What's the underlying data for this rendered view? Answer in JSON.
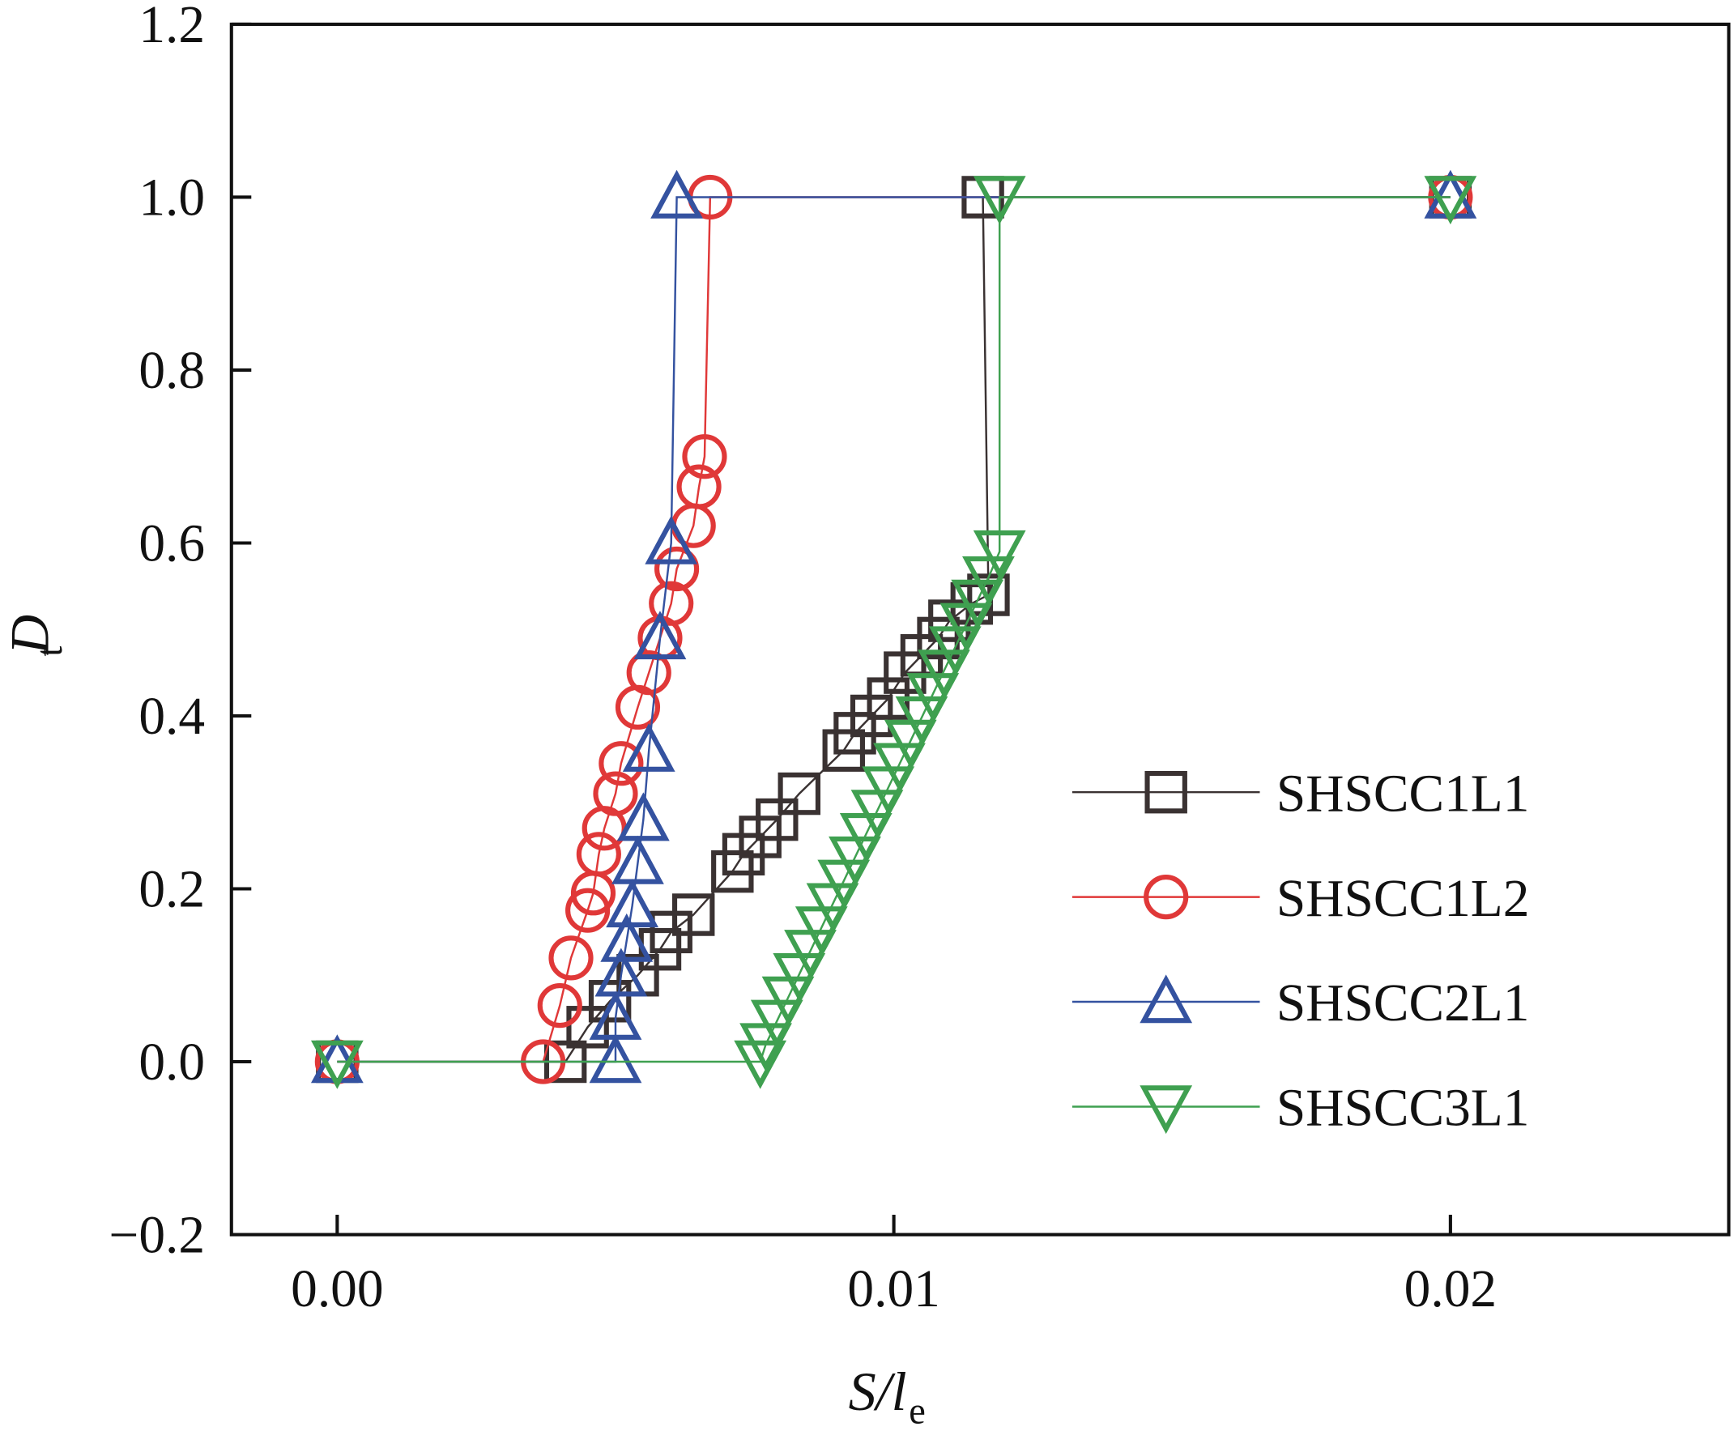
{
  "chart_data": {
    "type": "line",
    "xlabel": "S/l",
    "xlabel_sub": "e",
    "ylabel": "D",
    "ylabel_sub": "t",
    "xlim": [
      -0.0019,
      0.025
    ],
    "ylim": [
      -0.2,
      1.2
    ],
    "xticks": [
      {
        "value": 0,
        "label": "0.00"
      },
      0.01,
      0.02
    ],
    "yticks": [
      {
        "value": -0.2,
        "label": "−0.2"
      },
      {
        "value": 0,
        "label": "0.0"
      },
      0.2,
      0.4,
      0.6,
      0.8,
      {
        "value": 1,
        "label": "1.0"
      },
      1.2
    ],
    "legend_position": "lower right",
    "series": [
      {
        "name": "SHSCC1L1",
        "color": "#3a3232",
        "marker": "square",
        "x": [
          0,
          0.0041,
          0.0045,
          0.0049,
          0.0054,
          0.0058,
          0.006,
          0.0064,
          0.0071,
          0.0073,
          0.0076,
          0.0079,
          0.0083,
          0.0091,
          0.0093,
          0.0096,
          0.0099,
          0.0102,
          0.0105,
          0.0108,
          0.011,
          0.0114,
          0.0117,
          0.0116,
          0.02
        ],
        "values": [
          0,
          0,
          0.04,
          0.07,
          0.1,
          0.13,
          0.15,
          0.17,
          0.22,
          0.24,
          0.26,
          0.28,
          0.31,
          0.36,
          0.38,
          0.4,
          0.42,
          0.45,
          0.47,
          0.49,
          0.51,
          0.53,
          0.54,
          1,
          1
        ]
      },
      {
        "name": "SHSCC1L2",
        "color": "#e03838",
        "marker": "circle",
        "x": [
          0,
          0.0037,
          0.004,
          0.0042,
          0.0045,
          0.0046,
          0.0047,
          0.0048,
          0.005,
          0.0051,
          0.0054,
          0.0056,
          0.0058,
          0.006,
          0.0061,
          0.0064,
          0.0065,
          0.0066,
          0.0067,
          0.02
        ],
        "values": [
          0,
          0,
          0.065,
          0.12,
          0.175,
          0.195,
          0.24,
          0.27,
          0.31,
          0.345,
          0.41,
          0.45,
          0.49,
          0.53,
          0.57,
          0.62,
          0.665,
          0.7,
          1,
          1
        ]
      },
      {
        "name": "SHSCC2L1",
        "color": "#3452a0",
        "marker": "triangle-up",
        "x": [
          0,
          0.005,
          0.005,
          0.0051,
          0.0052,
          0.0053,
          0.0054,
          0.0055,
          0.0056,
          0.0058,
          0.006,
          0.0061,
          0.02
        ],
        "values": [
          0,
          0,
          0.05,
          0.1,
          0.14,
          0.18,
          0.23,
          0.28,
          0.36,
          0.49,
          0.6,
          1,
          1
        ]
      },
      {
        "name": "SHSCC3L1",
        "color": "#3fa050",
        "marker": "triangle-down",
        "x": [
          0,
          0.0076,
          0.0077,
          0.0079,
          0.0081,
          0.0083,
          0.0085,
          0.0087,
          0.0089,
          0.0091,
          0.0093,
          0.0095,
          0.0097,
          0.0099,
          0.0101,
          0.0103,
          0.0105,
          0.0107,
          0.0109,
          0.0111,
          0.0113,
          0.0115,
          0.0117,
          0.0119,
          0.0119,
          0.02
        ],
        "values": [
          0,
          0,
          0.02,
          0.047,
          0.074,
          0.101,
          0.128,
          0.155,
          0.182,
          0.209,
          0.236,
          0.263,
          0.29,
          0.317,
          0.344,
          0.371,
          0.398,
          0.425,
          0.452,
          0.479,
          0.506,
          0.533,
          0.56,
          0.59,
          1,
          1
        ]
      }
    ]
  }
}
